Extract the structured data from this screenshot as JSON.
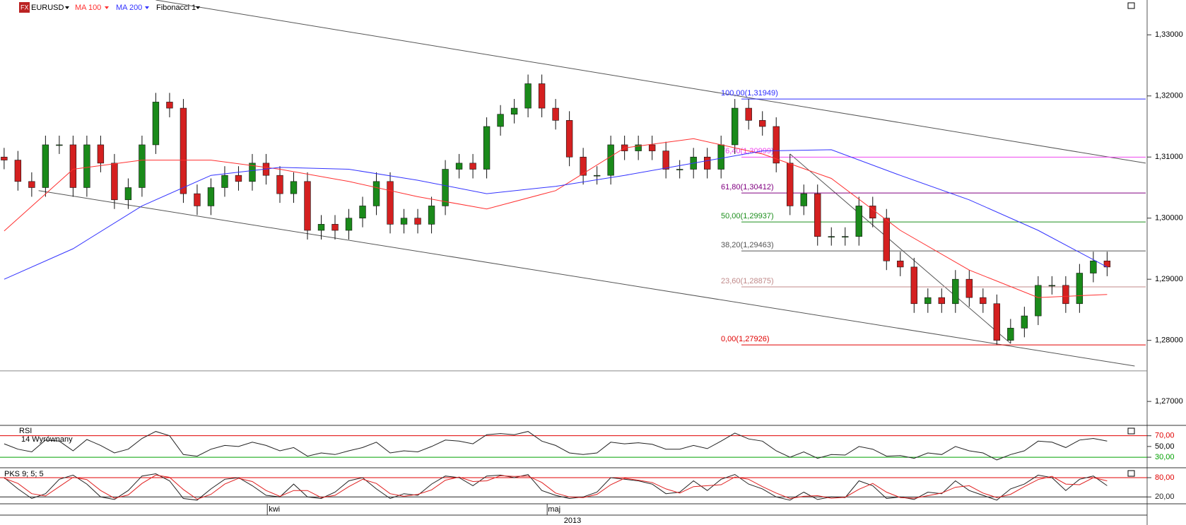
{
  "chart_data": [
    {
      "type": "candlestick",
      "title": "EURUSD",
      "open": [
        1.31,
        1.3095,
        1.306,
        1.305,
        1.312,
        1.312,
        1.305,
        1.312,
        1.309,
        1.303,
        1.305,
        1.312,
        1.319,
        1.318,
        1.304,
        1.302,
        1.305,
        1.307,
        1.306,
        1.309,
        1.307,
        1.304,
        1.306,
        1.298,
        1.299,
        1.298,
        1.3,
        1.302,
        1.306,
        1.299,
        1.3,
        1.299,
        1.302,
        1.308,
        1.309,
        1.308,
        1.315,
        1.317,
        1.318,
        1.322,
        1.318,
        1.316,
        1.31,
        1.307,
        1.307,
        1.312,
        1.311,
        1.312,
        1.311,
        1.308,
        1.308,
        1.31,
        1.308,
        1.312,
        1.318,
        1.316,
        1.315,
        1.309,
        1.302,
        1.304,
        1.297,
        1.297,
        1.297,
        1.302,
        1.3,
        1.293,
        1.292,
        1.286,
        1.287,
        1.286,
        1.29,
        1.287,
        1.286,
        1.28,
        1.282,
        1.284,
        1.289,
        1.289,
        1.286,
        1.291,
        1.293
      ],
      "high": [
        1.3115,
        1.311,
        1.3075,
        1.3135,
        1.3135,
        1.3135,
        1.3135,
        1.3135,
        1.3105,
        1.3065,
        1.3135,
        1.3205,
        1.3205,
        1.3195,
        1.3055,
        1.3065,
        1.3085,
        1.3085,
        1.3105,
        1.3105,
        1.3085,
        1.3075,
        1.3075,
        1.3005,
        1.3005,
        1.3015,
        1.3035,
        1.3075,
        1.3075,
        1.3015,
        1.3015,
        1.3035,
        1.3095,
        1.3105,
        1.3105,
        1.3165,
        1.3185,
        1.3195,
        1.3235,
        1.3235,
        1.3195,
        1.3175,
        1.3115,
        1.3085,
        1.3135,
        1.3135,
        1.3135,
        1.3135,
        1.3125,
        1.3095,
        1.3115,
        1.3115,
        1.3135,
        1.3195,
        1.3195,
        1.3175,
        1.3165,
        1.3105,
        1.3055,
        1.3055,
        1.2985,
        1.2985,
        1.3035,
        1.3035,
        1.3015,
        1.2945,
        1.2935,
        1.2885,
        1.2885,
        1.2915,
        1.2915,
        1.2885,
        1.2875,
        1.2835,
        1.2855,
        1.2905,
        1.2905,
        1.2905,
        1.2925,
        1.2945,
        1.2945
      ],
      "low": [
        1.308,
        1.3045,
        1.3035,
        1.3035,
        1.3105,
        1.3035,
        1.3035,
        1.3075,
        1.3015,
        1.3015,
        1.3035,
        1.3105,
        1.3165,
        1.3025,
        1.3005,
        1.3005,
        1.3035,
        1.3045,
        1.3045,
        1.3055,
        1.3025,
        1.3025,
        1.2965,
        1.2965,
        1.2965,
        1.2965,
        1.2985,
        1.3005,
        1.2975,
        1.2975,
        1.2975,
        1.2975,
        1.3005,
        1.3065,
        1.3065,
        1.3065,
        1.3135,
        1.3155,
        1.3165,
        1.3165,
        1.3145,
        1.3085,
        1.3055,
        1.3055,
        1.3055,
        1.3095,
        1.3095,
        1.3095,
        1.3065,
        1.3065,
        1.3065,
        1.3065,
        1.3065,
        1.3105,
        1.3145,
        1.3135,
        1.3075,
        1.3005,
        1.3005,
        1.2955,
        1.2955,
        1.2955,
        1.2955,
        1.2985,
        1.2915,
        1.2905,
        1.2845,
        1.2845,
        1.2845,
        1.2845,
        1.2855,
        1.2845,
        1.2793,
        1.2795,
        1.2805,
        1.2825,
        1.2875,
        1.2845,
        1.2845,
        1.2895,
        1.2905
      ],
      "close": [
        1.3095,
        1.306,
        1.305,
        1.312,
        1.312,
        1.305,
        1.312,
        1.309,
        1.303,
        1.305,
        1.312,
        1.319,
        1.318,
        1.304,
        1.302,
        1.305,
        1.307,
        1.306,
        1.309,
        1.307,
        1.304,
        1.306,
        1.298,
        1.299,
        1.298,
        1.3,
        1.302,
        1.306,
        1.299,
        1.3,
        1.299,
        1.302,
        1.308,
        1.309,
        1.308,
        1.315,
        1.317,
        1.318,
        1.322,
        1.318,
        1.316,
        1.31,
        1.307,
        1.307,
        1.312,
        1.311,
        1.312,
        1.311,
        1.308,
        1.308,
        1.31,
        1.308,
        1.312,
        1.318,
        1.316,
        1.315,
        1.309,
        1.302,
        1.304,
        1.297,
        1.297,
        1.297,
        1.302,
        1.3,
        1.293,
        1.292,
        1.286,
        1.287,
        1.286,
        1.29,
        1.287,
        1.286,
        1.28,
        1.282,
        1.284,
        1.289,
        1.289,
        1.286,
        1.291,
        1.293,
        1.292
      ],
      "up_color": "#1a8a1a",
      "down_color": "#d42020",
      "series": [
        {
          "name": "MA 100",
          "color": "#ff3030",
          "x": [
            0,
            5,
            10,
            15,
            20,
            25,
            30,
            35,
            40,
            45,
            50,
            55,
            60,
            65,
            70,
            75,
            80
          ],
          "values": [
            1.2979,
            1.308,
            1.3095,
            1.3095,
            1.308,
            1.306,
            1.3035,
            1.3015,
            1.3045,
            1.3115,
            1.313,
            1.3105,
            1.3065,
            1.298,
            1.2915,
            1.287,
            1.2875
          ]
        },
        {
          "name": "MA 200",
          "color": "#3333ff",
          "x": [
            0,
            5,
            10,
            15,
            20,
            25,
            30,
            35,
            40,
            45,
            50,
            55,
            60,
            65,
            70,
            75,
            80
          ],
          "values": [
            1.29,
            1.295,
            1.302,
            1.307,
            1.3083,
            1.308,
            1.3062,
            1.304,
            1.3052,
            1.307,
            1.309,
            1.311,
            1.3112,
            1.307,
            1.303,
            1.298,
            1.292
          ]
        }
      ],
      "fibonacci": {
        "name": "Fibonacci 1",
        "levels": [
          {
            "label": "100,00(1,31949)",
            "value": 1.31949,
            "color": "#2b2bff"
          },
          {
            "label": "76,40(1,30999)",
            "value": 1.30999,
            "color": "#ee44ee"
          },
          {
            "label": "61,80(1,30412)",
            "value": 1.30412,
            "color": "#800080"
          },
          {
            "label": "50,00(1,29937)",
            "value": 1.29937,
            "color": "#1f8f1f"
          },
          {
            "label": "38,20(1,29463)",
            "value": 1.29463,
            "color": "#555555"
          },
          {
            "label": "23,60(1,28875)",
            "value": 1.28875,
            "color": "#c08a8a"
          },
          {
            "label": "0,00(1,27926)",
            "value": 1.27926,
            "color": "#e00000"
          }
        ]
      },
      "trendlines": [
        {
          "x": [
            11,
            82.8
          ],
          "y": [
            1.3357,
            1.309
          ]
        },
        {
          "x": [
            2.5,
            82
          ],
          "y": [
            1.3045,
            1.2758
          ]
        },
        {
          "x": [
            57,
            73
          ],
          "y": [
            1.3105,
            1.2795
          ]
        }
      ],
      "horizontal_lines": [
        1.275
      ],
      "xlim": [
        -0.3,
        82.8
      ],
      "ylim": [
        1.2662,
        1.3357
      ],
      "yticks": [
        {
          "value": 1.27,
          "label": "1,27000"
        },
        {
          "value": 1.28,
          "label": "1,28000"
        },
        {
          "value": 1.29,
          "label": "1,29000"
        },
        {
          "value": 1.3,
          "label": "1,30000"
        },
        {
          "value": 1.31,
          "label": "1,31000"
        },
        {
          "value": 1.32,
          "label": "1,32000"
        },
        {
          "value": 1.33,
          "label": "1,33000"
        }
      ],
      "xticks": [
        {
          "value": 19.6,
          "label": "kwi"
        },
        {
          "value": 39.9,
          "label": "maj"
        }
      ],
      "xlabel": "2013"
    },
    {
      "type": "line",
      "title": "RSI",
      "subtitle": "14 Wyrównany",
      "series": [
        {
          "color": "#222222",
          "values": [
            55,
            45,
            40,
            62,
            60,
            42,
            63,
            52,
            38,
            45,
            65,
            78,
            70,
            35,
            32,
            45,
            52,
            50,
            58,
            52,
            42,
            48,
            32,
            38,
            35,
            42,
            48,
            58,
            38,
            42,
            40,
            50,
            62,
            60,
            55,
            72,
            74,
            72,
            78,
            60,
            52,
            38,
            35,
            38,
            58,
            55,
            57,
            54,
            45,
            45,
            52,
            46,
            60,
            75,
            64,
            60,
            42,
            30,
            40,
            28,
            35,
            34,
            50,
            45,
            32,
            33,
            28,
            38,
            35,
            50,
            42,
            38,
            25,
            35,
            42,
            60,
            58,
            48,
            62,
            65,
            60
          ]
        }
      ],
      "xlim": [
        -0.3,
        82.8
      ],
      "ylim": [
        13,
        88
      ],
      "yticks": [
        {
          "value": 70,
          "label": "70,00"
        },
        {
          "value": 50,
          "label": "50,00"
        },
        {
          "value": 30,
          "label": "30,00"
        }
      ],
      "tick_colors": [
        "#e00000",
        null,
        "#00a000"
      ]
    },
    {
      "type": "line",
      "title": "PKS 9; 5; 5",
      "series": [
        {
          "color": "#222222",
          "values": [
            80,
            45,
            15,
            30,
            75,
            88,
            60,
            20,
            12,
            40,
            85,
            92,
            70,
            15,
            10,
            45,
            75,
            80,
            55,
            25,
            20,
            60,
            20,
            15,
            35,
            70,
            80,
            45,
            15,
            30,
            25,
            60,
            85,
            80,
            55,
            85,
            88,
            80,
            90,
            40,
            25,
            15,
            20,
            35,
            80,
            75,
            70,
            60,
            30,
            35,
            70,
            40,
            75,
            90,
            60,
            45,
            20,
            10,
            35,
            12,
            20,
            18,
            70,
            55,
            15,
            20,
            12,
            35,
            30,
            70,
            40,
            25,
            10,
            45,
            60,
            88,
            80,
            40,
            75,
            85,
            55
          ]
        },
        {
          "color": "#e02020",
          "values": [
            78,
            62,
            30,
            23,
            52,
            81,
            74,
            40,
            16,
            26,
            62,
            88,
            81,
            43,
            13,
            28,
            60,
            78,
            68,
            40,
            22,
            40,
            40,
            18,
            25,
            52,
            75,
            62,
            30,
            22,
            28,
            42,
            72,
            82,
            68,
            70,
            86,
            84,
            85,
            65,
            32,
            20,
            18,
            28,
            58,
            78,
            72,
            65,
            45,
            32,
            52,
            55,
            58,
            82,
            75,
            52,
            32,
            15,
            22,
            24,
            16,
            19,
            44,
            62,
            35,
            18,
            16,
            24,
            32,
            50,
            55,
            32,
            18,
            28,
            52,
            74,
            84,
            60,
            58,
            80,
            70
          ]
        }
      ],
      "xlim": [
        -0.3,
        82.8
      ],
      "ylim": [
        0.8,
        106.4
      ],
      "yticks": [
        {
          "value": 80,
          "label": "80,00"
        },
        {
          "value": 20,
          "label": "20,00"
        }
      ],
      "tick_colors": [
        "#e00000",
        "#222222"
      ]
    }
  ]
}
